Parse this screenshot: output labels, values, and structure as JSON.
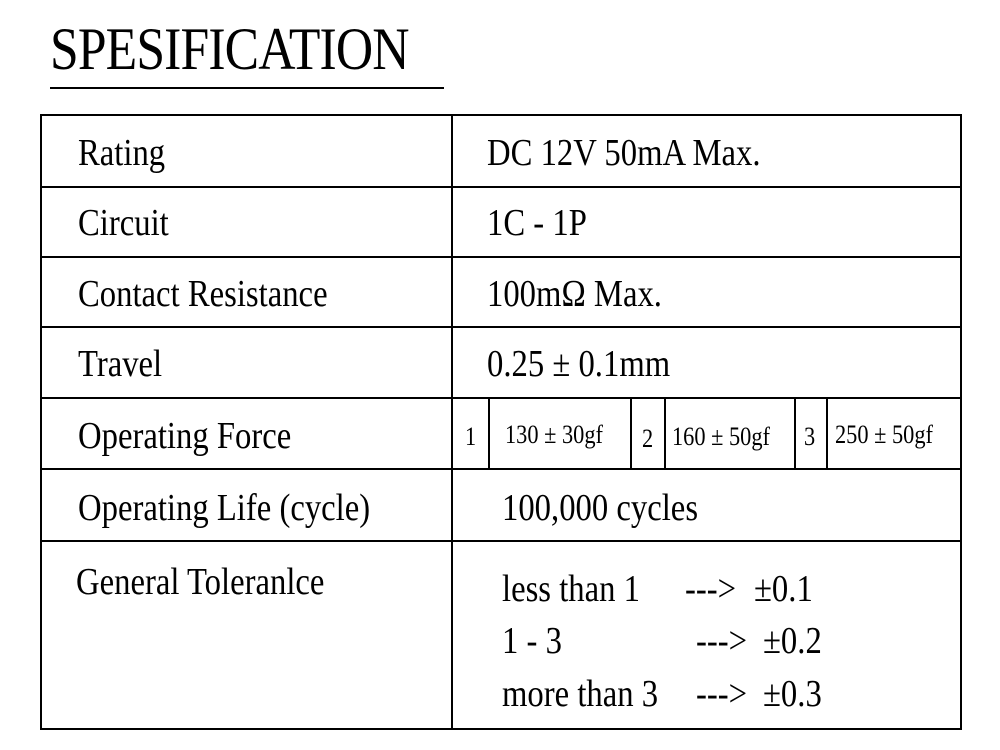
{
  "title": "SPESIFICATION",
  "rows": {
    "rating": {
      "label": "Rating",
      "value": "DC 12V 50mA Max."
    },
    "circuit": {
      "label": "Circuit",
      "value": "1C - 1P"
    },
    "contact_resistance": {
      "label": "Contact Resistance",
      "value": "100mΩ  Max."
    },
    "travel": {
      "label": "Travel",
      "value": "0.25 ± 0.1mm"
    },
    "operating_force": {
      "label": "Operating Force",
      "options": [
        {
          "index": "1",
          "value": "130 ± 30gf"
        },
        {
          "index": "2",
          "value": "160 ± 50gf"
        },
        {
          "index": "3",
          "value": "250 ± 50gf"
        }
      ]
    },
    "operating_life": {
      "label": "Operating Life (cycle)",
      "value": "100,000 cycles"
    },
    "general_tolerance": {
      "label": "General Toleranlce",
      "lines": [
        {
          "range": "less than 1",
          "arrow": "--->",
          "value": "±0.1"
        },
        {
          "range": "1 - 3",
          "arrow": "--->",
          "value": "±0.2"
        },
        {
          "range": "more than 3",
          "arrow": "--->",
          "value": "±0.3"
        }
      ]
    }
  }
}
